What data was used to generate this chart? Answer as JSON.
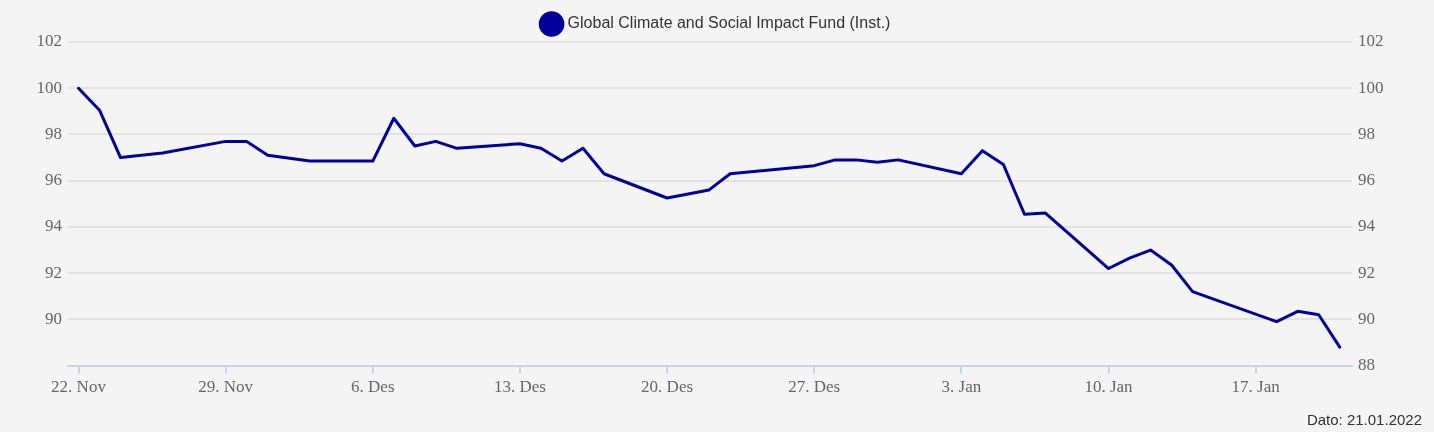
{
  "chart_data": {
    "type": "line",
    "x": [
      "2021-11-22",
      "2021-11-23",
      "2021-11-24",
      "2021-11-26",
      "2021-11-29",
      "2021-11-30",
      "2021-12-01",
      "2021-12-03",
      "2021-12-06",
      "2021-12-07",
      "2021-12-08",
      "2021-12-09",
      "2021-12-10",
      "2021-12-13",
      "2021-12-14",
      "2021-12-15",
      "2021-12-16",
      "2021-12-17",
      "2021-12-20",
      "2021-12-22",
      "2021-12-23",
      "2021-12-27",
      "2021-12-28",
      "2021-12-29",
      "2021-12-30",
      "2021-12-31",
      "2022-01-03",
      "2022-01-04",
      "2022-01-05",
      "2022-01-06",
      "2022-01-07",
      "2022-01-10",
      "2022-01-11",
      "2022-01-12",
      "2022-01-13",
      "2022-01-14",
      "2022-01-18",
      "2022-01-19",
      "2022-01-20",
      "2022-01-21"
    ],
    "series": [
      {
        "name": "Global Climate and Social Impact Fund (Inst.)",
        "color": "#00009b",
        "values": [
          100.0,
          99.05,
          97.0,
          97.2,
          97.7,
          97.7,
          97.1,
          96.85,
          96.85,
          98.7,
          97.5,
          97.7,
          97.4,
          97.6,
          97.4,
          96.85,
          97.4,
          96.3,
          95.25,
          95.6,
          96.3,
          96.65,
          96.9,
          96.9,
          96.8,
          96.9,
          96.3,
          97.3,
          96.7,
          94.55,
          94.6,
          92.2,
          92.65,
          93.0,
          92.35,
          91.2,
          89.9,
          90.35,
          90.2,
          88.8
        ]
      }
    ],
    "xlim": [
      "2021-11-21T12:00",
      "2022-01-21T14:00"
    ],
    "xticks": [
      {
        "value": "2021-11-22",
        "label": "22. Nov"
      },
      {
        "value": "2021-11-29",
        "label": "29. Nov"
      },
      {
        "value": "2021-12-06",
        "label": "6. Des"
      },
      {
        "value": "2021-12-13",
        "label": "13. Des"
      },
      {
        "value": "2021-12-20",
        "label": "20. Des"
      },
      {
        "value": "2021-12-27",
        "label": "27. Des"
      },
      {
        "value": "2022-01-03",
        "label": "3. Jan"
      },
      {
        "value": "2022-01-10",
        "label": "10. Jan"
      },
      {
        "value": "2022-01-17",
        "label": "17. Jan"
      }
    ],
    "ylim": [
      88,
      102
    ],
    "yticks": [
      {
        "value": 88,
        "label": null
      },
      90,
      92,
      94,
      96,
      98,
      100,
      102
    ],
    "y2lim": [
      88,
      102
    ],
    "y2ticks": [
      88,
      90,
      92,
      94,
      96,
      98,
      100,
      102
    ],
    "grid": "y",
    "legend": "top",
    "marker": "none",
    "line_style": "solid",
    "annotations": [
      "Dato: 21.01.2022"
    ]
  }
}
